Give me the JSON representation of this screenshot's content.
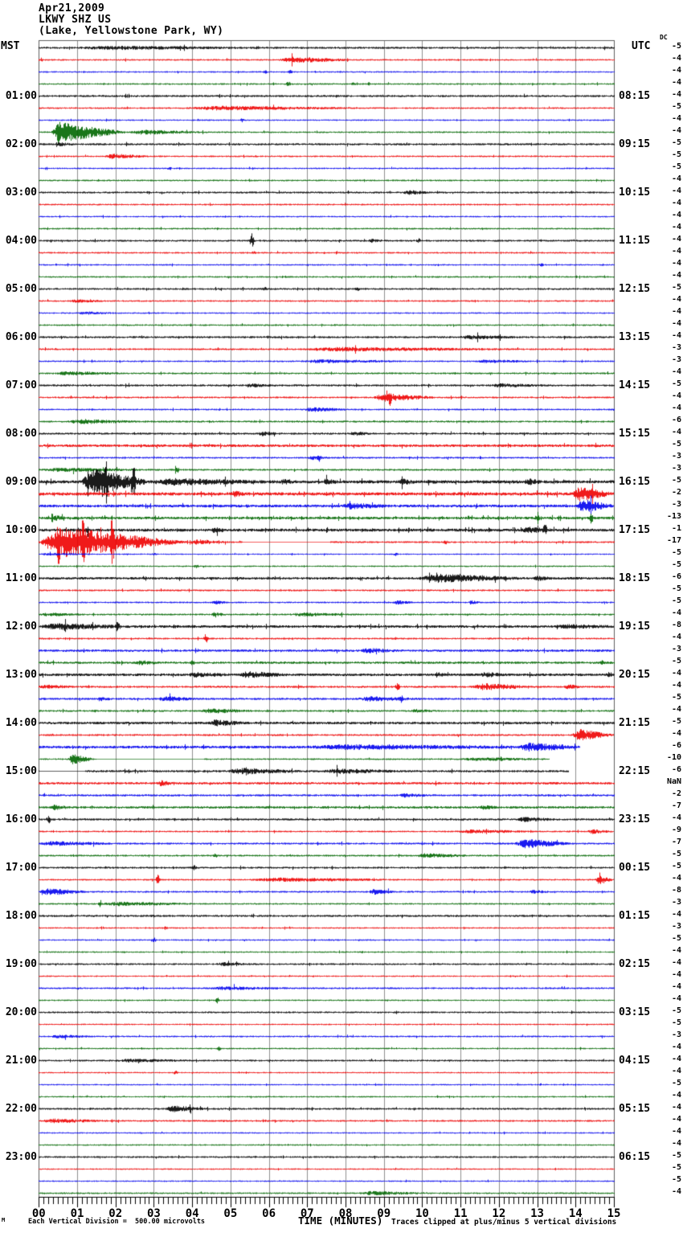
{
  "header": {
    "date": "Apr21,2009",
    "station": "LKWY SHZ US",
    "location": "(Lake, Yellowstone Park, WY)"
  },
  "axes": {
    "left_label": "MST",
    "right_label": "UTC",
    "dc_label": "DC",
    "x_label": "TIME (MINUTES)",
    "minute_ticks": [
      "00",
      "01",
      "02",
      "03",
      "04",
      "05",
      "06",
      "07",
      "08",
      "09",
      "10",
      "11",
      "12",
      "13",
      "14",
      "15"
    ],
    "left_hours": [
      "01:00",
      "02:00",
      "03:00",
      "04:00",
      "05:00",
      "06:00",
      "07:00",
      "08:00",
      "09:00",
      "10:00",
      "11:00",
      "12:00",
      "13:00",
      "14:00",
      "15:00",
      "16:00",
      "17:00",
      "18:00",
      "19:00",
      "20:00",
      "21:00",
      "22:00",
      "23:00"
    ],
    "right_hours": [
      "08:15",
      "09:15",
      "10:15",
      "11:15",
      "12:15",
      "13:15",
      "14:15",
      "15:15",
      "16:15",
      "17:15",
      "18:15",
      "19:15",
      "20:15",
      "21:15",
      "22:15",
      "23:15",
      "00:15",
      "01:15",
      "02:15",
      "03:15",
      "04:15",
      "05:15",
      "06:15"
    ]
  },
  "footer": {
    "scale_note": "Each Vertical Division =  500.00 microvolts",
    "clip_note": "Traces clipped at plus/minus 5 vertical divisions",
    "corner_mark": "M"
  },
  "chart_data": {
    "type": "line",
    "subtype": "helicorder-seismogram",
    "minutes_per_line": 15,
    "x_range": [
      0,
      15
    ],
    "grid": "vertical-minute-lines",
    "grid_color": "#909090",
    "frame_color": "#606060",
    "color_cycle": [
      "black",
      "red",
      "blue",
      "green"
    ],
    "trace_colors": {
      "black": "#000000",
      "red": "#ee0000",
      "blue": "#0000ee",
      "green": "#006600"
    },
    "rows": [
      {
        "v": "-5",
        "b": 1.4,
        "e": [
          [
            1,
            5.5,
            1.6
          ]
        ]
      },
      {
        "v": "-4",
        "b": 1.1,
        "e": [
          [
            0.05,
            2
          ],
          [
            6.25,
            8.2,
            3.2
          ]
        ]
      },
      {
        "v": "-4",
        "b": 1.0,
        "e": [
          [
            5.9,
            1.5
          ],
          [
            6.55,
            2
          ]
        ]
      },
      {
        "v": "-4",
        "b": 1.1,
        "e": [
          [
            6.5,
            3.8
          ],
          [
            8.2,
            1.5
          ]
        ]
      },
      {
        "v": "-4",
        "b": 1.4,
        "e": []
      },
      {
        "v": "-5",
        "b": 1.1,
        "e": [
          [
            3.8,
            8.6,
            2.0
          ]
        ]
      },
      {
        "v": "-4",
        "b": 1.0,
        "e": [
          [
            5.3,
            2.4
          ]
        ]
      },
      {
        "v": "-4",
        "b": 1.1,
        "e": [
          [
            0.3,
            2.3,
            11
          ],
          [
            0.5,
            16
          ],
          [
            2.3,
            4.5,
            2.2
          ]
        ]
      },
      {
        "v": "-5",
        "b": 1.4,
        "e": [
          [
            0.4,
            1.0,
            1.4
          ]
        ]
      },
      {
        "v": "-5",
        "b": 1.1,
        "e": [
          [
            1.7,
            2.9,
            2.6
          ]
        ]
      },
      {
        "v": "-5",
        "b": 1.0,
        "e": [
          [
            3.4,
            2.0
          ]
        ]
      },
      {
        "v": "-4",
        "b": 1.1,
        "e": []
      },
      {
        "v": "-4",
        "b": 1.3,
        "e": [
          [
            9.5,
            10.2,
            2.2
          ]
        ]
      },
      {
        "v": "-4",
        "b": 1.1,
        "e": []
      },
      {
        "v": "-4",
        "b": 1.0,
        "e": []
      },
      {
        "v": "-4",
        "b": 1.1,
        "e": []
      },
      {
        "v": "-4",
        "b": 1.3,
        "e": [
          [
            5.55,
            9
          ],
          [
            8.6,
            9.0,
            1.6
          ],
          [
            9.9,
            2.2
          ]
        ]
      },
      {
        "v": "-4",
        "b": 1.1,
        "e": [
          [
            5.6,
            2.0
          ]
        ]
      },
      {
        "v": "-4",
        "b": 1.0,
        "e": [
          [
            13.1,
            1.6
          ]
        ]
      },
      {
        "v": "-4",
        "b": 1.1,
        "e": []
      },
      {
        "v": "-5",
        "b": 1.3,
        "e": [
          [
            5.9,
            1.8
          ],
          [
            8.3,
            1.8
          ]
        ]
      },
      {
        "v": "-4",
        "b": 1.1,
        "e": [
          [
            0.8,
            1.8,
            1.4
          ]
        ]
      },
      {
        "v": "-4",
        "b": 1.0,
        "e": [
          [
            1.0,
            2.0,
            1.4
          ]
        ]
      },
      {
        "v": "-4",
        "b": 1.1,
        "e": []
      },
      {
        "v": "-4",
        "b": 1.4,
        "e": [
          [
            11.0,
            12.6,
            1.8
          ]
        ]
      },
      {
        "v": "-3",
        "b": 1.2,
        "e": [
          [
            6.8,
            12.6,
            1.8
          ]
        ]
      },
      {
        "v": "-3",
        "b": 1.1,
        "e": [
          [
            6.8,
            9.6,
            1.6
          ],
          [
            11.4,
            13.0,
            1.4
          ]
        ]
      },
      {
        "v": "-4",
        "b": 1.2,
        "e": [
          [
            0.4,
            2.2,
            1.8
          ]
        ]
      },
      {
        "v": "-5",
        "b": 1.4,
        "e": [
          [
            5.4,
            6.1,
            1.5
          ],
          [
            11.8,
            13.2,
            1.6
          ]
        ]
      },
      {
        "v": "-4",
        "b": 1.2,
        "e": [
          [
            8.7,
            10.4,
            4.2
          ],
          [
            9.15,
            6
          ]
        ]
      },
      {
        "v": "-4",
        "b": 1.1,
        "e": [
          [
            6.9,
            8.1,
            2.2
          ]
        ]
      },
      {
        "v": "-6",
        "b": 1.3,
        "e": [
          [
            0.8,
            2.6,
            2.2
          ]
        ]
      },
      {
        "v": "-4",
        "b": 1.4,
        "e": [
          [
            5.7,
            6.3,
            1.8
          ],
          [
            8.1,
            8.7,
            1.8
          ]
        ]
      },
      {
        "v": "-5",
        "b": 1.8,
        "e": []
      },
      {
        "v": "-3",
        "b": 1.2,
        "e": [
          [
            7.0,
            7.6,
            2.0
          ],
          [
            7.3,
            3.2
          ]
        ]
      },
      {
        "v": "-3",
        "b": 1.3,
        "e": [
          [
            0,
            2.8,
            1.6
          ],
          [
            1.7,
            2.6
          ],
          [
            3.6,
            4.2
          ]
        ]
      },
      {
        "v": "-5",
        "b": 2.2,
        "sp": 0.96,
        "e": [
          [
            1.1,
            2.9,
            15
          ],
          [
            2.45,
            26
          ],
          [
            1.75,
            20
          ],
          [
            2.9,
            6.0,
            3.0
          ],
          [
            6.3,
            6.7,
            2.6
          ],
          [
            7.4,
            7.8,
            2.6
          ],
          [
            9.4,
            9.8,
            2.6
          ],
          [
            12.7,
            13.1,
            3.0
          ]
        ]
      },
      {
        "v": "-2",
        "b": 2.2,
        "sp": 0.965,
        "e": [
          [
            5.0,
            5.4,
            2.6
          ],
          [
            13.9,
            15,
            7.5
          ]
        ]
      },
      {
        "v": "-3",
        "b": 1.9,
        "sp": 0.97,
        "e": [
          [
            7.9,
            9.2,
            2.6
          ],
          [
            14.0,
            15,
            7.5
          ]
        ]
      },
      {
        "v": "-13",
        "b": 1.8,
        "sp": 0.93,
        "e": [
          [
            0.3,
            0.7,
            2.4
          ],
          [
            13.0,
            3.2
          ],
          [
            14.4,
            6
          ]
        ]
      },
      {
        "v": "-1",
        "b": 2.0,
        "sp": 0.95,
        "e": [
          [
            1.25,
            2.8
          ],
          [
            4.5,
            4.9,
            2.5
          ],
          [
            12.6,
            13.4,
            2.6
          ],
          [
            13.2,
            7.5
          ]
        ]
      },
      {
        "v": "-17",
        "b": 1.2,
        "e": [
          [
            0,
            3.9,
            18
          ],
          [
            0.5,
            27
          ],
          [
            1.15,
            27
          ],
          [
            1.9,
            24
          ],
          [
            3.9,
            5.0,
            2.8
          ],
          [
            10.6,
            2.4
          ]
        ],
        "q": [
          [
            5.3,
            7.6
          ]
        ]
      },
      {
        "v": "-5",
        "b": 0.9,
        "e": [
          [
            0,
            1.5,
            1.0
          ],
          [
            3.0,
            1.4
          ],
          [
            9.3,
            1.6
          ]
        ]
      },
      {
        "v": "-5",
        "b": 1.0,
        "e": [
          [
            4.1,
            2.0
          ]
        ]
      },
      {
        "v": "-6",
        "b": 1.7,
        "e": [
          [
            9.9,
            12.7,
            4.2
          ],
          [
            12.9,
            13.4,
            2.0
          ]
        ]
      },
      {
        "v": "-5",
        "b": 1.2,
        "e": []
      },
      {
        "v": "-5",
        "b": 1.1,
        "e": [
          [
            4.5,
            5.0,
            1.5
          ],
          [
            9.2,
            9.8,
            1.9
          ],
          [
            11.2,
            11.5,
            1.9
          ]
        ]
      },
      {
        "v": "-4",
        "b": 1.2,
        "e": [
          [
            0,
            1.2,
            1.5
          ],
          [
            4.5,
            4.9,
            2.0
          ],
          [
            6.5,
            8.5,
            1.4
          ]
        ]
      },
      {
        "v": "-8",
        "b": 1.8,
        "sp": 0.97,
        "e": [
          [
            0,
            2.5,
            2.8
          ],
          [
            2.05,
            5.5
          ],
          [
            13.5,
            15,
            1.6
          ]
        ]
      },
      {
        "v": "-4",
        "b": 1.2,
        "e": [
          [
            4.35,
            6
          ]
        ]
      },
      {
        "v": "-3",
        "b": 1.6,
        "e": [
          [
            8.4,
            9.4,
            2.2
          ]
        ]
      },
      {
        "v": "-5",
        "b": 1.6,
        "e": [
          [
            2.5,
            3.2,
            2.0
          ],
          [
            4.0,
            2.3
          ],
          [
            14.7,
            2.3
          ]
        ]
      },
      {
        "v": "-4",
        "b": 1.8,
        "e": [
          [
            3.9,
            5.0,
            2.0
          ],
          [
            5.2,
            6.5,
            3.2
          ],
          [
            10.3,
            10.7,
            2.0
          ],
          [
            11.5,
            12.2,
            2.2
          ],
          [
            14.85,
            2.8
          ]
        ]
      },
      {
        "v": "-4",
        "b": 1.4,
        "e": [
          [
            0,
            1.0,
            1.6
          ],
          [
            9.35,
            5
          ],
          [
            11.3,
            12.9,
            3.5
          ],
          [
            13.7,
            14.2,
            2.2
          ]
        ]
      },
      {
        "v": "-5",
        "b": 1.4,
        "e": [
          [
            1.5,
            1.9,
            2.0
          ],
          [
            3.1,
            4.1,
            2.4
          ],
          [
            8.3,
            10.0,
            2.2
          ],
          [
            9.45,
            3.6
          ]
        ]
      },
      {
        "v": "-4",
        "b": 1.3,
        "e": [
          [
            4.2,
            5.6,
            2.4
          ],
          [
            9.7,
            10.3,
            1.6
          ]
        ]
      },
      {
        "v": "-5",
        "b": 1.7,
        "e": [
          [
            4.4,
            5.4,
            3.2
          ]
        ]
      },
      {
        "v": "-4",
        "b": 1.3,
        "e": [
          [
            13.9,
            15,
            7
          ]
        ]
      },
      {
        "v": "-6",
        "b": 1.9,
        "e": [
          [
            7,
            12.5,
            2.0
          ],
          [
            12.5,
            14.1,
            4.5
          ]
        ],
        "end": 14.1
      },
      {
        "v": "-10",
        "b": 1.1,
        "e": [
          [
            0.75,
            1.45,
            5.5
          ],
          [
            11,
            13.3,
            1.5
          ]
        ],
        "q": [
          [
            1.5,
            4.3
          ]
        ],
        "end": 13.3
      },
      {
        "v": "-6",
        "b": 1.5,
        "e": [
          [
            4.9,
            6.9,
            3.0
          ],
          [
            7.4,
            9.5,
            2.2
          ]
        ],
        "q": [
          [
            0,
            1.2
          ]
        ],
        "end": 13.8
      },
      {
        "v": "NaN",
        "b": 1.6,
        "e": [
          [
            3.1,
            3.5,
            2.6
          ]
        ]
      },
      {
        "v": "-2",
        "b": 1.4,
        "e": [
          [
            9.4,
            10.2,
            2.0
          ]
        ]
      },
      {
        "v": "-7",
        "b": 1.6,
        "e": [
          [
            0.3,
            0.8,
            2.2
          ],
          [
            11.5,
            12.0,
            1.8
          ]
        ]
      },
      {
        "v": "-4",
        "b": 1.4,
        "e": [
          [
            0.25,
            4.5
          ],
          [
            12.4,
            13.6,
            2.0
          ]
        ]
      },
      {
        "v": "-9",
        "b": 1.1,
        "e": [
          [
            10.9,
            13.0,
            1.7
          ],
          [
            14.3,
            15,
            2.2
          ]
        ]
      },
      {
        "v": "-7",
        "b": 1.3,
        "e": [
          [
            0,
            2,
            2.2
          ],
          [
            12.4,
            13.9,
            5
          ]
        ]
      },
      {
        "v": "-5",
        "b": 1.2,
        "e": [
          [
            4.6,
            2.0
          ],
          [
            9.8,
            11.3,
            2.0
          ]
        ]
      },
      {
        "v": "-5",
        "b": 1.3,
        "e": [
          [
            4.05,
            3.0
          ]
        ]
      },
      {
        "v": "-4",
        "b": 1.1,
        "e": [
          [
            3.1,
            6
          ],
          [
            5.5,
            9.5,
            1.8
          ],
          [
            14.5,
            15,
            5.5
          ]
        ]
      },
      {
        "v": "-8",
        "b": 1.2,
        "e": [
          [
            0,
            1.3,
            3.8
          ],
          [
            8.6,
            9.3,
            2.8
          ],
          [
            12.8,
            13.3,
            1.8
          ]
        ]
      },
      {
        "v": "-3",
        "b": 1.1,
        "e": [
          [
            1.6,
            4.2
          ],
          [
            1.6,
            4.2,
            1.8
          ]
        ]
      },
      {
        "v": "-4",
        "b": 1.4,
        "e": []
      },
      {
        "v": "-3",
        "b": 1.0,
        "e": [
          [
            3.3,
            2.0
          ]
        ]
      },
      {
        "v": "-5",
        "b": 1.0,
        "e": [
          [
            3.0,
            2.6
          ]
        ]
      },
      {
        "v": "-4",
        "b": 1.0,
        "e": []
      },
      {
        "v": "-4",
        "b": 1.2,
        "e": [
          [
            4.6,
            5.7,
            1.4
          ]
        ]
      },
      {
        "v": "-4",
        "b": 0.95,
        "e": []
      },
      {
        "v": "-4",
        "b": 1.2,
        "e": [
          [
            4.4,
            6.6,
            1.5
          ]
        ]
      },
      {
        "v": "-4",
        "b": 1.0,
        "e": [
          [
            4.65,
            3.2
          ]
        ]
      },
      {
        "v": "-5",
        "b": 1.2,
        "e": []
      },
      {
        "v": "-5",
        "b": 0.95,
        "e": []
      },
      {
        "v": "-3",
        "b": 1.1,
        "e": [
          [
            0.3,
            1.4,
            1.4
          ]
        ]
      },
      {
        "v": "-4",
        "b": 1.0,
        "e": [
          [
            4.7,
            2.4
          ]
        ]
      },
      {
        "v": "-4",
        "b": 1.2,
        "e": [
          [
            2,
            4,
            1.4
          ]
        ]
      },
      {
        "v": "-4",
        "b": 0.95,
        "e": [
          [
            3.55,
            2.6
          ]
        ]
      },
      {
        "v": "-5",
        "b": 0.95,
        "e": []
      },
      {
        "v": "-4",
        "b": 1.0,
        "e": []
      },
      {
        "v": "-4",
        "b": 1.3,
        "e": [
          [
            3.3,
            4.4,
            3.2
          ]
        ]
      },
      {
        "v": "-4",
        "b": 1.2,
        "e": [
          [
            0,
            1.9,
            2.0
          ]
        ]
      },
      {
        "v": "-4",
        "b": 0.95,
        "e": []
      },
      {
        "v": "-4",
        "b": 1.0,
        "e": []
      },
      {
        "v": "-5",
        "b": 1.2,
        "e": []
      },
      {
        "v": "-5",
        "b": 0.95,
        "e": []
      },
      {
        "v": "-5",
        "b": 0.95,
        "e": []
      },
      {
        "v": "-4",
        "b": 1.1,
        "e": [
          [
            8.3,
            10.2,
            1.8
          ]
        ]
      }
    ]
  }
}
